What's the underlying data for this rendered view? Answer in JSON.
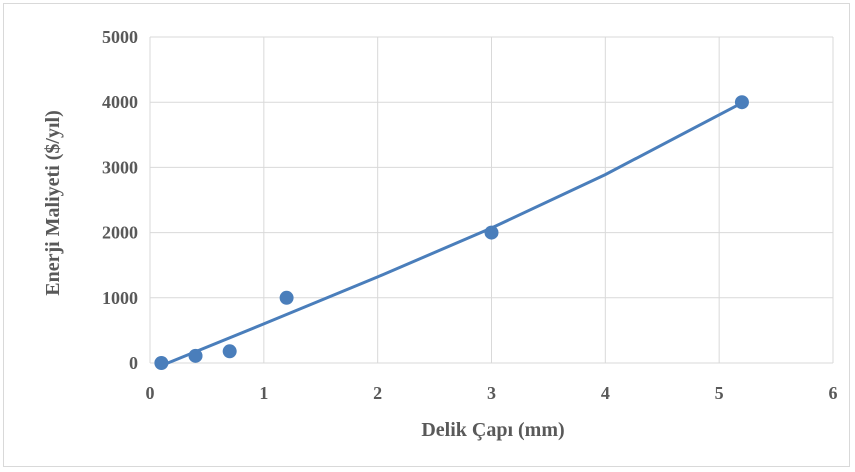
{
  "chart_data": {
    "type": "scatter",
    "title": "",
    "xlabel": "Delik Çapı (mm)",
    "ylabel": "Enerji Maliyeti ($/yıl)",
    "xlim": [
      0,
      6
    ],
    "ylim": [
      0,
      5000
    ],
    "x_ticks": [
      "0",
      "1",
      "2",
      "3",
      "4",
      "5",
      "6"
    ],
    "y_ticks": [
      "0",
      "1000",
      "2000",
      "3000",
      "4000",
      "5000"
    ],
    "grid": true,
    "legend": "none",
    "series": [
      {
        "points": [
          {
            "x": 0.1,
            "y": 0
          },
          {
            "x": 0.4,
            "y": 110
          },
          {
            "x": 0.7,
            "y": 180
          },
          {
            "x": 1.2,
            "y": 1000
          },
          {
            "x": 3.0,
            "y": 2000
          },
          {
            "x": 5.2,
            "y": 4000
          }
        ],
        "color": "#4a7ebb"
      }
    ],
    "trendline": {
      "points": [
        {
          "x": 0.1,
          "y": -40
        },
        {
          "x": 1.0,
          "y": 600
        },
        {
          "x": 2.0,
          "y": 1320
        },
        {
          "x": 3.0,
          "y": 2070
        },
        {
          "x": 4.0,
          "y": 2890
        },
        {
          "x": 5.2,
          "y": 3990
        }
      ],
      "color": "#4a7ebb"
    }
  }
}
